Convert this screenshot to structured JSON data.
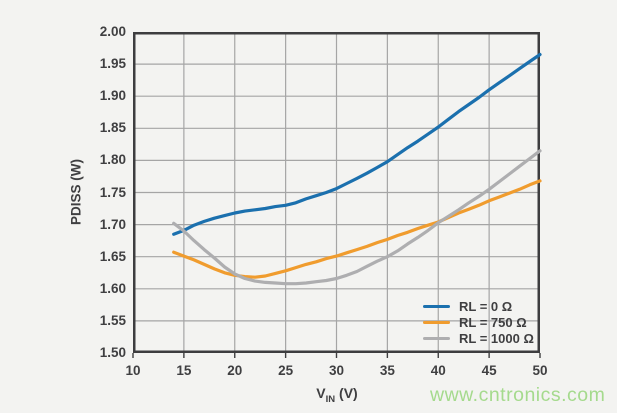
{
  "chart_data": {
    "type": "line",
    "title": "",
    "ylabel": "PDISS (W)",
    "xlabel": {
      "main": "V",
      "sub": "IN",
      "unit": " (V)"
    },
    "xlim": [
      10,
      50
    ],
    "ylim": [
      1.5,
      2.0
    ],
    "grid": true,
    "legend_position": "inside-bottom-right",
    "x_ticks": [
      10,
      15,
      20,
      25,
      30,
      35,
      40,
      45,
      50
    ],
    "x_tick_labels": [
      "10",
      "15",
      "20",
      "25",
      "30",
      "35",
      "40",
      "45",
      "50"
    ],
    "y_ticks": [
      1.5,
      1.55,
      1.6,
      1.65,
      1.7,
      1.75,
      1.8,
      1.85,
      1.9,
      1.95,
      2.0
    ],
    "y_tick_labels": [
      "1.50",
      "1.55",
      "1.60",
      "1.65",
      "1.70",
      "1.75",
      "1.80",
      "1.85",
      "1.90",
      "1.95",
      "2.00"
    ],
    "x": [
      14,
      15,
      16,
      17,
      18,
      19,
      20,
      21,
      22,
      23,
      24,
      25,
      26,
      27,
      28,
      29,
      30,
      31,
      32,
      33,
      34,
      35,
      36,
      37,
      38,
      39,
      40,
      41,
      42,
      43,
      44,
      45,
      46,
      47,
      48,
      49,
      50
    ],
    "series": [
      {
        "name": "RL = 0 Ω",
        "color": "#1b70ae",
        "values": [
          1.685,
          1.691,
          1.699,
          1.705,
          1.71,
          1.714,
          1.718,
          1.721,
          1.723,
          1.725,
          1.728,
          1.73,
          1.734,
          1.74,
          1.745,
          1.75,
          1.756,
          1.764,
          1.772,
          1.78,
          1.789,
          1.798,
          1.809,
          1.82,
          1.83,
          1.841,
          1.852,
          1.864,
          1.876,
          1.887,
          1.898,
          1.91,
          1.921,
          1.932,
          1.943,
          1.954,
          1.965
        ]
      },
      {
        "name": "RL = 750 Ω",
        "color": "#f09c2e",
        "values": [
          1.657,
          1.651,
          1.645,
          1.638,
          1.631,
          1.625,
          1.621,
          1.619,
          1.618,
          1.62,
          1.624,
          1.628,
          1.633,
          1.638,
          1.642,
          1.647,
          1.651,
          1.656,
          1.661,
          1.666,
          1.672,
          1.677,
          1.683,
          1.688,
          1.694,
          1.699,
          1.704,
          1.711,
          1.718,
          1.724,
          1.73,
          1.737,
          1.743,
          1.749,
          1.755,
          1.762,
          1.768
        ]
      },
      {
        "name": "RL = 1000 Ω",
        "color": "#aeaeb0",
        "values": [
          1.702,
          1.69,
          1.675,
          1.661,
          1.648,
          1.634,
          1.623,
          1.616,
          1.612,
          1.61,
          1.609,
          1.608,
          1.608,
          1.609,
          1.611,
          1.613,
          1.616,
          1.621,
          1.627,
          1.635,
          1.643,
          1.65,
          1.659,
          1.67,
          1.68,
          1.691,
          1.703,
          1.713,
          1.723,
          1.734,
          1.744,
          1.755,
          1.767,
          1.779,
          1.791,
          1.803,
          1.815
        ]
      }
    ],
    "colors": {
      "grid": "#a5a5a5",
      "border": "#3d3d3f",
      "text": "#3f3f41",
      "background": "#f3f3f1"
    }
  },
  "watermark": {
    "text": "www.cntronics.com",
    "color": "#a5da8d"
  }
}
